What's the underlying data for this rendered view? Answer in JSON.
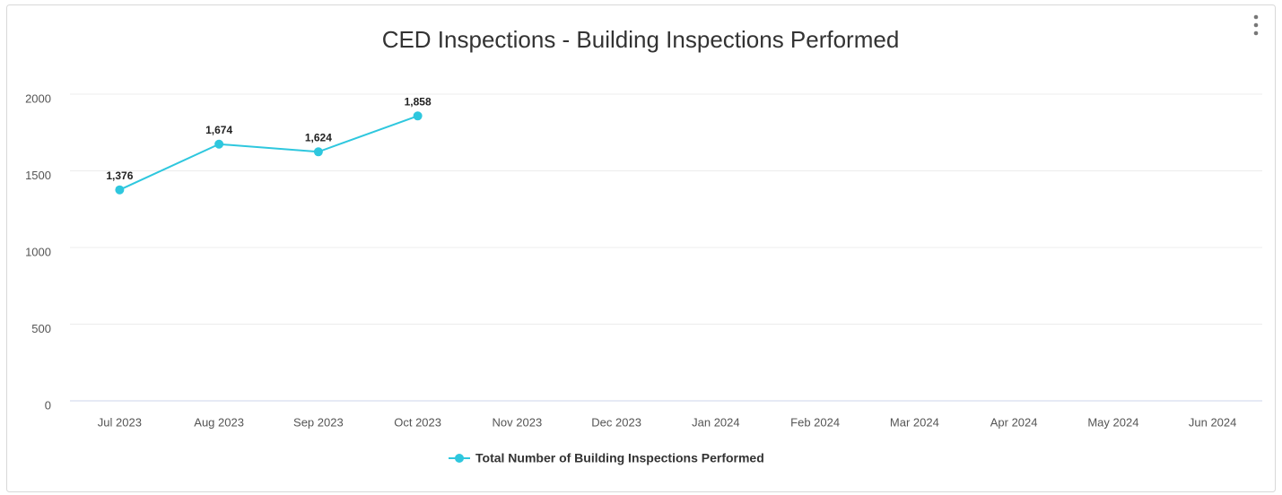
{
  "chart_data": {
    "type": "line",
    "title": "CED Inspections - Building Inspections Performed",
    "categories": [
      "Jul 2023",
      "Aug 2023",
      "Sep 2023",
      "Oct 2023",
      "Nov 2023",
      "Dec 2023",
      "Jan 2024",
      "Feb 2024",
      "Mar 2024",
      "Apr 2024",
      "May 2024",
      "Jun 2024"
    ],
    "series": [
      {
        "name": "Total Number of Building Inspections Performed",
        "color": "#2ec7de",
        "values": [
          1376,
          1674,
          1624,
          1858,
          null,
          null,
          null,
          null,
          null,
          null,
          null,
          null
        ],
        "value_labels": [
          "1,376",
          "1,674",
          "1,624",
          "1,858",
          null,
          null,
          null,
          null,
          null,
          null,
          null,
          null
        ]
      }
    ],
    "ylim": [
      0,
      2000
    ],
    "yticks": [
      0,
      500,
      1000,
      1500,
      2000
    ],
    "grid": true,
    "legend": "bottom"
  }
}
